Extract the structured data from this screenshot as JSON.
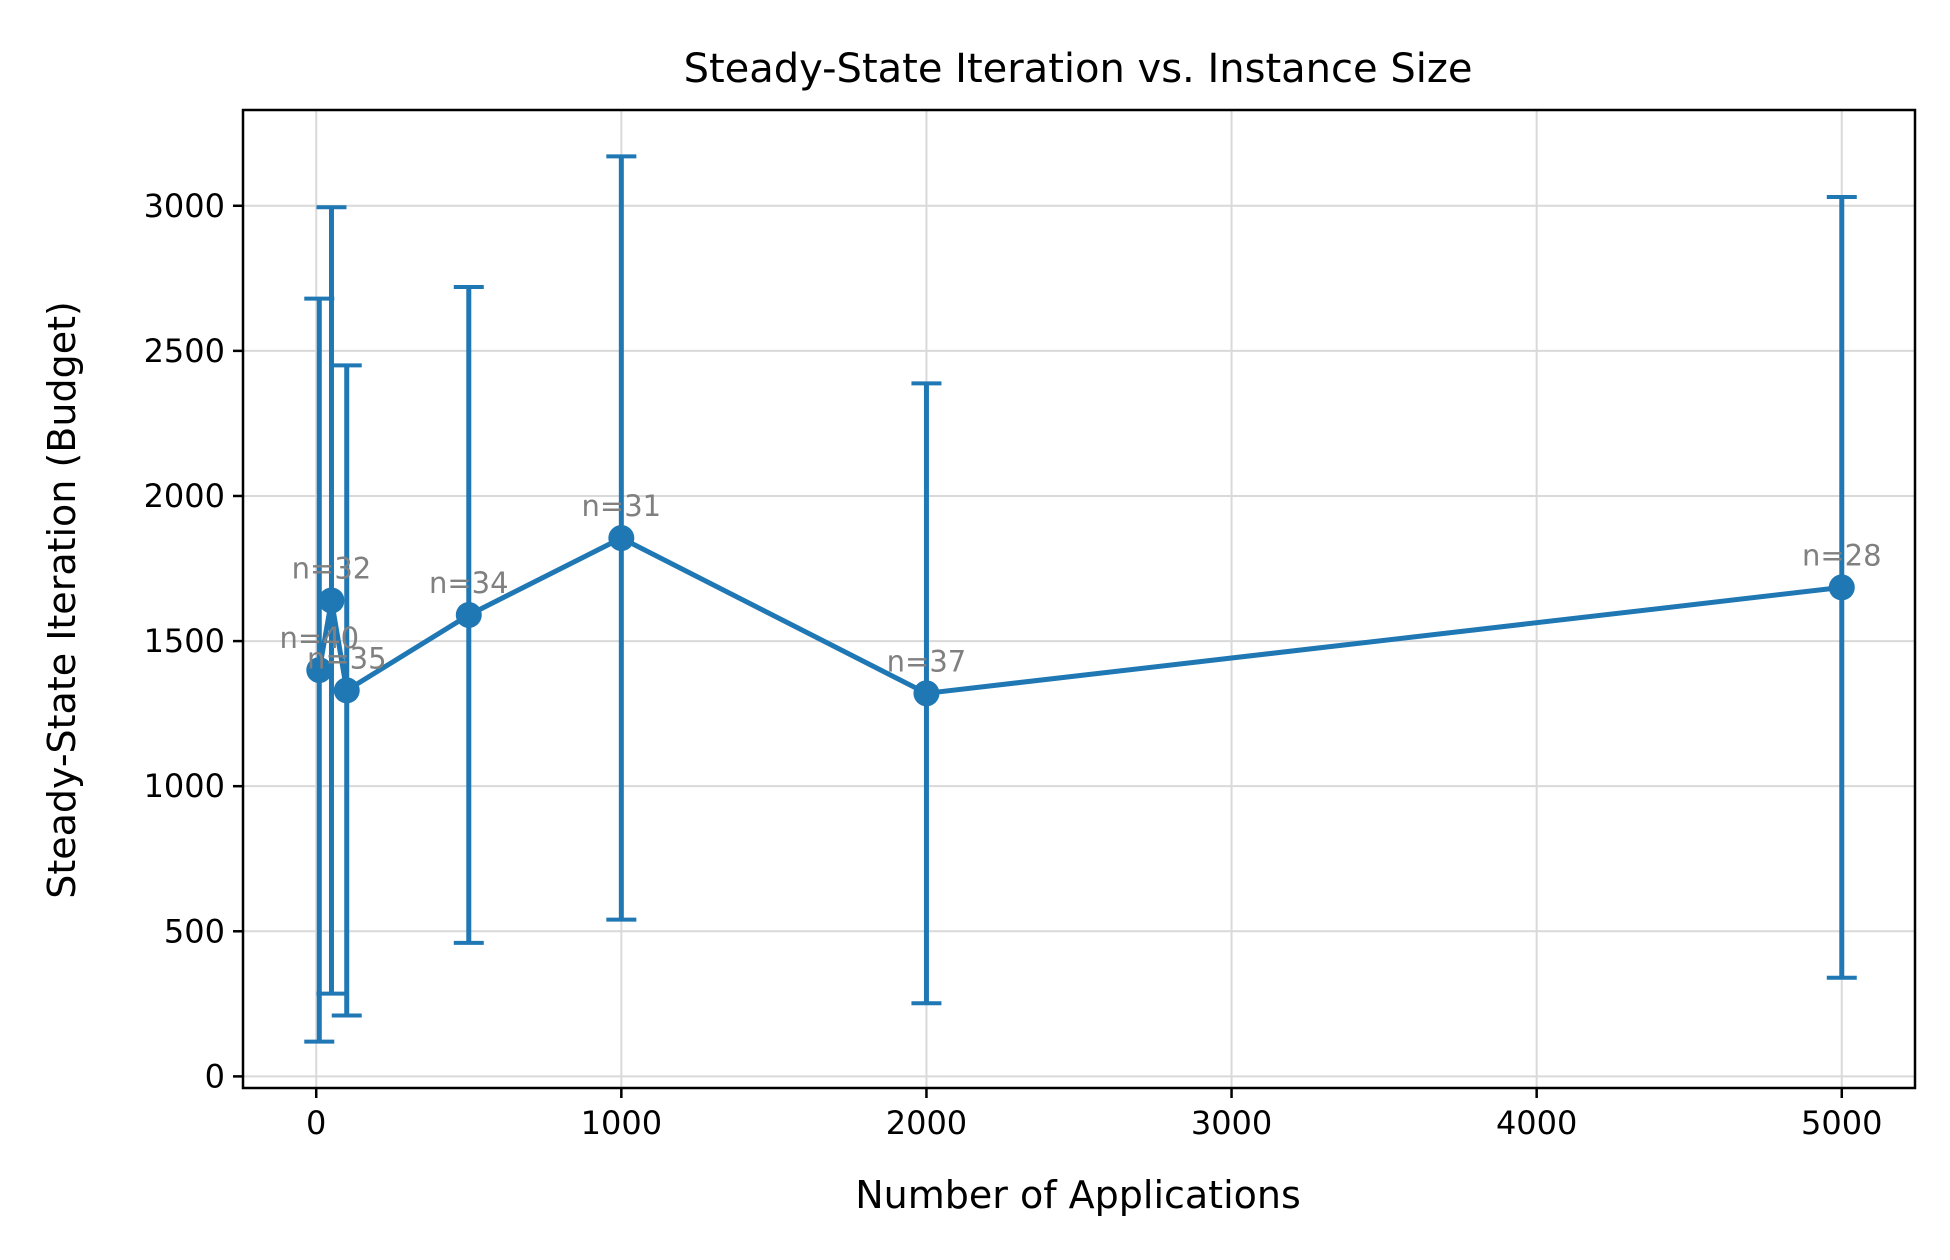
{
  "chart_data": {
    "type": "line",
    "title": "Steady-State Iteration vs. Instance Size",
    "xlabel": "Number of Applications",
    "ylabel": "Steady-State Iteration (Budget)",
    "xlim": [
      -240,
      5240
    ],
    "ylim": [
      -40,
      3330
    ],
    "xticks": [
      0,
      1000,
      2000,
      3000,
      4000,
      5000
    ],
    "yticks": [
      0,
      500,
      1000,
      1500,
      2000,
      2500,
      3000
    ],
    "grid": true,
    "color": "#1f77b4",
    "annotation_color": "#808080",
    "series": [
      {
        "points": [
          {
            "x": 10,
            "y": 1400,
            "err_low": 1280,
            "err_high": 1280,
            "label": "n=40"
          },
          {
            "x": 50,
            "y": 1640,
            "err_low": 1355,
            "err_high": 1355,
            "label": "n=32"
          },
          {
            "x": 100,
            "y": 1330,
            "err_low": 1120,
            "err_high": 1120,
            "label": "n=35"
          },
          {
            "x": 500,
            "y": 1590,
            "err_low": 1130,
            "err_high": 1130,
            "label": "n=34"
          },
          {
            "x": 1000,
            "y": 1855,
            "err_low": 1315,
            "err_high": 1315,
            "label": "n=31"
          },
          {
            "x": 2000,
            "y": 1320,
            "err_low": 1068,
            "err_high": 1068,
            "label": "n=37"
          },
          {
            "x": 5000,
            "y": 1685,
            "err_low": 1345,
            "err_high": 1345,
            "label": "n=28"
          }
        ]
      }
    ]
  }
}
